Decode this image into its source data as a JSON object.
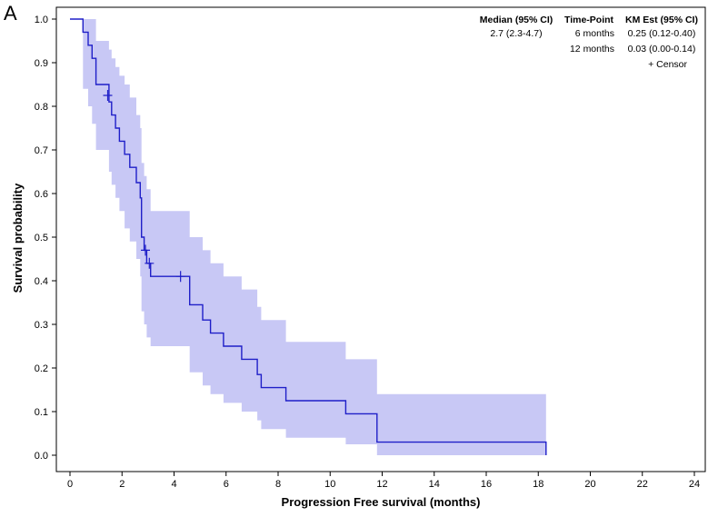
{
  "panel_label": "A",
  "chart_data": {
    "type": "line",
    "title": "",
    "xlabel": "Progression Free survival (months)",
    "ylabel": "Survival probability",
    "xlim": [
      0,
      24
    ],
    "ylim": [
      0,
      1
    ],
    "x_ticks": [
      0,
      2,
      4,
      6,
      8,
      10,
      12,
      14,
      16,
      18,
      20,
      22,
      24
    ],
    "y_ticks": [
      0.0,
      0.1,
      0.2,
      0.3,
      0.4,
      0.5,
      0.6,
      0.7,
      0.8,
      0.9,
      1.0
    ],
    "grid": false,
    "colors": {
      "line": "#1f1fc8",
      "band": "#c8c8f5"
    },
    "series": [
      {
        "kind": "step",
        "x": [
          0,
          0.5,
          0.7,
          0.85,
          1.0,
          1.5,
          1.6,
          1.75,
          1.9,
          2.1,
          2.3,
          2.55,
          2.7,
          2.75,
          2.85,
          2.95,
          3.1,
          4.6,
          5.1,
          5.4,
          5.9,
          6.6,
          7.2,
          7.35,
          8.3,
          10.6,
          11.8,
          18.3
        ],
        "y": [
          1.0,
          0.97,
          0.94,
          0.91,
          0.85,
          0.81,
          0.78,
          0.75,
          0.72,
          0.69,
          0.66,
          0.625,
          0.59,
          0.5,
          0.47,
          0.44,
          0.41,
          0.345,
          0.31,
          0.28,
          0.25,
          0.22,
          0.185,
          0.155,
          0.125,
          0.095,
          0.03,
          0.0
        ]
      }
    ],
    "ci_band": {
      "x": [
        0,
        0.5,
        0.7,
        0.85,
        1.0,
        1.5,
        1.6,
        1.75,
        1.9,
        2.1,
        2.3,
        2.55,
        2.7,
        2.75,
        2.85,
        2.95,
        3.1,
        4.6,
        5.1,
        5.4,
        5.9,
        6.6,
        7.2,
        7.35,
        8.3,
        10.6,
        11.8,
        18.3
      ],
      "lower": [
        1.0,
        0.84,
        0.8,
        0.76,
        0.7,
        0.65,
        0.62,
        0.59,
        0.56,
        0.52,
        0.49,
        0.45,
        0.41,
        0.33,
        0.3,
        0.27,
        0.25,
        0.19,
        0.16,
        0.14,
        0.12,
        0.1,
        0.08,
        0.06,
        0.04,
        0.025,
        0.0,
        0.0
      ],
      "upper": [
        1.0,
        1.0,
        1.0,
        1.0,
        0.95,
        0.93,
        0.91,
        0.89,
        0.87,
        0.85,
        0.82,
        0.78,
        0.75,
        0.67,
        0.64,
        0.61,
        0.56,
        0.5,
        0.47,
        0.44,
        0.41,
        0.38,
        0.34,
        0.31,
        0.26,
        0.22,
        0.14,
        0.14
      ]
    },
    "censor_marks": [
      {
        "x": 1.45,
        "y": 0.825
      },
      {
        "x": 2.9,
        "y": 0.47
      },
      {
        "x": 3.05,
        "y": 0.44
      },
      {
        "x": 4.25,
        "y": 0.41
      }
    ],
    "inset": {
      "median_header": "Median (95% CI)",
      "median_value": "2.7 (2.3-4.7)",
      "timepoint_header": "Time-Point",
      "km_header": "KM Est (95% CI)",
      "rows": [
        {
          "timepoint": "6 months",
          "km": "0.25 (0.12-0.40)"
        },
        {
          "timepoint": "12 months",
          "km": "0.03 (0.00-0.14)"
        }
      ],
      "censor_legend": "+  Censor"
    }
  }
}
